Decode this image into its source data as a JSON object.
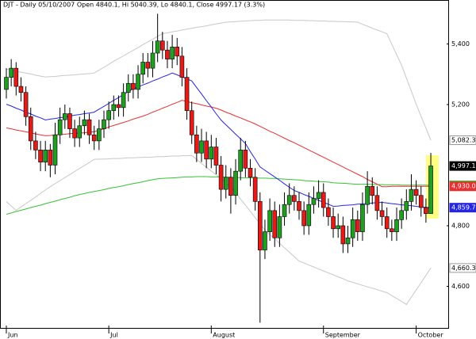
{
  "chart_data": {
    "type": "candlestick",
    "title": "DJT - Daily 05/10/2007 Open 4840.1, Hi 5040.39, Lo 4840.1, Close 4997.17 (3.3%)",
    "categories": [
      "Jun",
      null,
      null,
      null,
      null,
      null,
      null,
      null,
      null,
      null,
      null,
      null,
      null,
      null,
      null,
      null,
      null,
      null,
      null,
      null,
      null,
      "Jul",
      null,
      null,
      null,
      null,
      null,
      null,
      null,
      null,
      null,
      null,
      null,
      null,
      null,
      null,
      null,
      null,
      null,
      null,
      null,
      null,
      "August",
      null,
      null,
      null,
      null,
      null,
      null,
      null,
      null,
      null,
      null,
      null,
      null,
      null,
      null,
      null,
      null,
      null,
      null,
      null,
      null,
      null,
      null,
      "September",
      null,
      null,
      null,
      null,
      null,
      null,
      null,
      null,
      null,
      null,
      null,
      null,
      null,
      null,
      null,
      null,
      null,
      null,
      "October",
      null,
      null,
      null
    ],
    "open": [
      5250,
      5290,
      5320,
      5260,
      5240,
      5160,
      5080,
      5050,
      5010,
      5050,
      5000,
      5100,
      5150,
      5170,
      5120,
      5090,
      5130,
      5150,
      5100,
      5080,
      5120,
      5150,
      5180,
      5200,
      5190,
      5240,
      5270,
      5250,
      5300,
      5340,
      5320,
      5370,
      5410,
      5380,
      5350,
      5390,
      5360,
      5290,
      5180,
      5100,
      5040,
      5080,
      5020,
      5060,
      5000,
      4920,
      4960,
      4900,
      4980,
      5050,
      4990,
      4960,
      4880,
      4720,
      4780,
      4850,
      4760,
      4830,
      4870,
      4900,
      4880,
      4850,
      4800,
      4870,
      4890,
      4910,
      4860,
      4830,
      4790,
      4800,
      4740,
      4760,
      4820,
      4780,
      4870,
      4930,
      4900,
      4850,
      4830,
      4790,
      4780,
      4820,
      4850,
      4880,
      4920,
      4900,
      4860,
      4840.1
    ],
    "high": [
      5320,
      5350,
      5340,
      5290,
      5260,
      5190,
      5110,
      5080,
      5080,
      5070,
      5140,
      5190,
      5200,
      5190,
      5150,
      5160,
      5180,
      5170,
      5130,
      5150,
      5180,
      5210,
      5230,
      5230,
      5270,
      5300,
      5300,
      5330,
      5370,
      5370,
      5410,
      5500,
      5440,
      5410,
      5430,
      5420,
      5390,
      5320,
      5210,
      5130,
      5120,
      5110,
      5100,
      5090,
      5030,
      5000,
      4990,
      5020,
      5090,
      5080,
      5020,
      4990,
      4910,
      4820,
      4890,
      4880,
      4870,
      4910,
      4940,
      4930,
      4910,
      4880,
      4910,
      4930,
      4950,
      4940,
      4890,
      4860,
      4840,
      4830,
      4800,
      4860,
      4850,
      4910,
      4980,
      4960,
      4930,
      4880,
      4860,
      4820,
      4860,
      4890,
      4920,
      4970,
      4950,
      4930,
      4890,
      5040.39
    ],
    "low": [
      5220,
      5260,
      5230,
      5210,
      5130,
      5050,
      5020,
      4980,
      4980,
      4960,
      4970,
      5070,
      5120,
      5090,
      5060,
      5060,
      5100,
      5070,
      5050,
      5050,
      5090,
      5120,
      5150,
      5160,
      5160,
      5210,
      5220,
      5220,
      5270,
      5290,
      5290,
      5340,
      5350,
      5320,
      5320,
      5330,
      5260,
      5150,
      5070,
      5010,
      5010,
      4990,
      4990,
      4970,
      4880,
      4890,
      4840,
      4870,
      4950,
      4960,
      4930,
      4850,
      4480,
      4690,
      4750,
      4730,
      4730,
      4800,
      4840,
      4850,
      4820,
      4770,
      4770,
      4840,
      4860,
      4830,
      4800,
      4760,
      4760,
      4710,
      4710,
      4730,
      4750,
      4750,
      4840,
      4870,
      4820,
      4800,
      4760,
      4750,
      4750,
      4790,
      4820,
      4850,
      4870,
      4830,
      4810,
      4840.1
    ],
    "close": [
      5290,
      5320,
      5260,
      5240,
      5160,
      5080,
      5050,
      5010,
      5050,
      5000,
      5100,
      5150,
      5170,
      5120,
      5090,
      5130,
      5150,
      5100,
      5080,
      5120,
      5150,
      5180,
      5200,
      5190,
      5240,
      5270,
      5250,
      5300,
      5340,
      5320,
      5370,
      5410,
      5380,
      5350,
      5390,
      5360,
      5290,
      5180,
      5100,
      5040,
      5080,
      5020,
      5060,
      5000,
      4920,
      4960,
      4900,
      4980,
      5050,
      4990,
      4960,
      4880,
      4720,
      4780,
      4850,
      4760,
      4830,
      4870,
      4900,
      4880,
      4850,
      4800,
      4870,
      4890,
      4910,
      4860,
      4830,
      4790,
      4800,
      4740,
      4760,
      4820,
      4780,
      4870,
      4930,
      4900,
      4850,
      4830,
      4790,
      4780,
      4820,
      4850,
      4880,
      4920,
      4900,
      4860,
      4840,
      4997.17
    ],
    "close_label": "4,997.17",
    "up_color": "#1f9e1f",
    "down_color": "#e41b17",
    "series": [
      {
        "color": "#c8c8c8",
        "last_label": "5,082.31",
        "values": [
          5317,
          5314,
          5310,
          5307,
          5304,
          5301,
          5297,
          5294,
          5291,
          5292,
          5293,
          5295,
          5296,
          5297,
          5298,
          5300,
          5301,
          5302,
          5304,
          5314,
          5323,
          5333,
          5343,
          5352,
          5361,
          5370,
          5379,
          5388,
          5398,
          5407,
          5416,
          5425,
          5434,
          5437,
          5440,
          5443,
          5446,
          5449,
          5452,
          5455,
          5457,
          5460,
          5463,
          5466,
          5469,
          5472,
          5473,
          5474,
          5475,
          5476,
          5477,
          5478,
          5478,
          5479,
          5479,
          5479,
          5479,
          5479,
          5479,
          5478,
          5478,
          5478,
          5477,
          5477,
          5476,
          5476,
          5475,
          5475,
          5474,
          5474,
          5473,
          5473,
          5472,
          5465,
          5459,
          5452,
          5446,
          5440,
          5434,
          5399,
          5365,
          5330,
          5287,
          5244,
          5201,
          5161,
          5122,
          5082.31
        ]
      },
      {
        "color": "#c8c8c8",
        "last_label": "4,660.39",
        "values": [
          4880,
          4865,
          4851,
          4862,
          4873,
          4884,
          4895,
          4907,
          4918,
          4929,
          4939,
          4949,
          4959,
          4969,
          4979,
          4989,
          4999,
          5009,
          5019,
          5020,
          5020,
          5021,
          5022,
          5022,
          5023,
          5024,
          5024,
          5025,
          5026,
          5026,
          5027,
          5028,
          5028,
          5029,
          5030,
          5030,
          5031,
          5031,
          5032,
          5019,
          5006,
          4993,
          4981,
          4968,
          4955,
          4942,
          4929,
          4909,
          4888,
          4868,
          4847,
          4827,
          4806,
          4786,
          4771,
          4757,
          4742,
          4727,
          4713,
          4698,
          4683,
          4677,
          4670,
          4664,
          4657,
          4651,
          4644,
          4638,
          4631,
          4625,
          4618,
          4613,
          4608,
          4603,
          4598,
          4594,
          4589,
          4584,
          4579,
          4569,
          4560,
          4550,
          4540,
          4564,
          4588,
          4612,
          4636,
          4660.39
        ]
      },
      {
        "color": "#36c236",
        "last_label": "4,933.53",
        "values": [
          4838,
          4842,
          4847,
          4851,
          4855,
          4860,
          4864,
          4868,
          4873,
          4877,
          4881,
          4886,
          4890,
          4894,
          4899,
          4903,
          4906,
          4910,
          4913,
          4916,
          4919,
          4923,
          4926,
          4929,
          4932,
          4936,
          4939,
          4942,
          4945,
          4949,
          4952,
          4955,
          4956,
          4957,
          4958,
          4959,
          4960,
          4961,
          4961,
          4962,
          4962,
          4962,
          4961,
          4961,
          4961,
          4960,
          4960,
          4959,
          4959,
          4958,
          4958,
          4958,
          4957,
          4957,
          4956,
          4956,
          4955,
          4954,
          4953,
          4952,
          4951,
          4949,
          4948,
          4947,
          4946,
          4945,
          4944,
          4942,
          4941,
          4940,
          4939,
          4938,
          4937,
          4937,
          4937,
          4936,
          4936,
          4936,
          4935,
          4935,
          4935,
          4934,
          4934,
          4934,
          4934,
          4934,
          4934,
          4933.53
        ]
      },
      {
        "color": "#e83030",
        "last_label": "4,930.06",
        "values": [
          5123,
          5120,
          5116,
          5113,
          5110,
          5107,
          5103,
          5100,
          5097,
          5098,
          5100,
          5101,
          5102,
          5104,
          5105,
          5106,
          5107,
          5109,
          5110,
          5115,
          5120,
          5126,
          5131,
          5136,
          5141,
          5146,
          5152,
          5157,
          5162,
          5168,
          5175,
          5181,
          5188,
          5194,
          5201,
          5207,
          5214,
          5210,
          5206,
          5203,
          5199,
          5195,
          5192,
          5188,
          5182,
          5175,
          5169,
          5162,
          5156,
          5149,
          5143,
          5136,
          5128,
          5120,
          5112,
          5105,
          5097,
          5089,
          5081,
          5074,
          5066,
          5058,
          5050,
          5042,
          5034,
          5026,
          5018,
          5010,
          5002,
          4994,
          4986,
          4978,
          4970,
          4962,
          4953,
          4945,
          4937,
          4929,
          4929,
          4930,
          4930,
          4930,
          4930,
          4930,
          4930,
          4930,
          4930,
          4930.06
        ]
      },
      {
        "color": "#2626e0",
        "last_label": "4,859.71",
        "values": [
          5201,
          5195,
          5188,
          5182,
          5175,
          5169,
          5162,
          5156,
          5149,
          5152,
          5154,
          5157,
          5159,
          5162,
          5165,
          5167,
          5170,
          5172,
          5175,
          5185,
          5194,
          5204,
          5214,
          5223,
          5233,
          5243,
          5252,
          5258,
          5265,
          5271,
          5278,
          5284,
          5291,
          5297,
          5304,
          5298,
          5291,
          5285,
          5278,
          5256,
          5235,
          5213,
          5192,
          5170,
          5149,
          5133,
          5118,
          5102,
          5087,
          5071,
          5045,
          5020,
          4994,
          4983,
          4972,
          4961,
          4950,
          4938,
          4927,
          4916,
          4910,
          4903,
          4897,
          4890,
          4884,
          4877,
          4871,
          4864,
          4865,
          4867,
          4868,
          4869,
          4871,
          4872,
          4873,
          4875,
          4876,
          4877,
          4875,
          4873,
          4871,
          4869,
          4868,
          4866,
          4864,
          4862,
          4861,
          4859.71
        ]
      }
    ],
    "ylim": [
      4460,
      5540
    ],
    "yticks": [
      {
        "value": 4600,
        "label": "4,600"
      },
      {
        "value": 4800,
        "label": "4,800"
      },
      {
        "value": 5200,
        "label": "5,200"
      },
      {
        "value": 5400,
        "label": "5,400"
      }
    ]
  }
}
